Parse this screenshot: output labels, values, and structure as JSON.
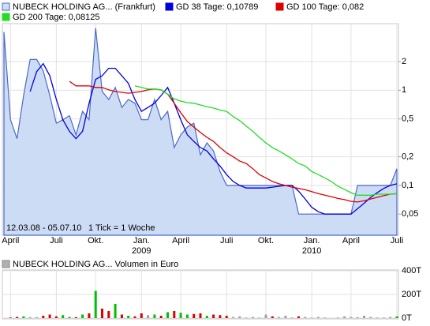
{
  "chart_data": [
    {
      "type": "line",
      "log": true,
      "grid": true,
      "ylim": [
        0.03,
        5
      ],
      "yticks": [
        {
          "value": 0.05,
          "label": "0,05"
        },
        {
          "value": 0.1,
          "label": "0,1"
        },
        {
          "value": 0.2,
          "label": "0,2"
        },
        {
          "value": 0.5,
          "label": "0,5"
        },
        1,
        2
      ],
      "annotations": [
        "12.03.08 - 05.07.10",
        "1 Tick = 1 Woche"
      ],
      "categories": [
        null,
        "April",
        null,
        null,
        null,
        null,
        null,
        null,
        "Juli",
        null,
        null,
        null,
        null,
        null,
        "Okt.",
        null,
        null,
        null,
        null,
        null,
        null,
        "Jan.",
        null,
        null,
        null,
        null,
        null,
        "April",
        null,
        null,
        null,
        null,
        null,
        null,
        "Juli",
        null,
        null,
        null,
        null,
        null,
        "Okt.",
        null,
        null,
        null,
        null,
        null,
        null,
        "Jan.",
        null,
        null,
        null,
        null,
        null,
        "April",
        null,
        null,
        null,
        null,
        null,
        null,
        "Juli"
      ],
      "category_years": [
        null,
        null,
        null,
        null,
        null,
        null,
        null,
        null,
        null,
        null,
        null,
        null,
        null,
        null,
        null,
        null,
        null,
        null,
        null,
        null,
        null,
        "2009",
        null,
        null,
        null,
        null,
        null,
        null,
        null,
        null,
        null,
        null,
        null,
        null,
        null,
        null,
        null,
        null,
        null,
        null,
        null,
        null,
        null,
        null,
        null,
        null,
        null,
        "2010",
        null,
        null,
        null,
        null,
        null,
        null,
        null,
        null,
        null,
        null,
        null,
        null,
        null
      ],
      "series": [
        {
          "name": "NUBECK HOLDING AG... (Frankfurt)",
          "color": "#4a68cc",
          "fill": "#cddcf5",
          "style": "area",
          "values": [
            4.1,
            0.49,
            0.31,
            0.88,
            2.1,
            2.1,
            1.6,
            0.88,
            0.45,
            0.49,
            0.54,
            0.34,
            0.6,
            0.49,
            4.5,
            0.97,
            0.8,
            1.07,
            0.66,
            0.8,
            0.73,
            0.49,
            0.49,
            0.8,
            0.49,
            0.6,
            0.25,
            0.34,
            0.41,
            0.45,
            0.21,
            0.28,
            0.23,
            0.14,
            0.1,
            0.1,
            0.1,
            0.1,
            0.1,
            0.1,
            0.1,
            0.1,
            0.1,
            0.1,
            0.1,
            0.05,
            0.05,
            0.05,
            0.05,
            0.05,
            0.05,
            0.05,
            0.05,
            0.05,
            0.1,
            0.1,
            0.1,
            0.1,
            0.1,
            0.1,
            0.15
          ]
        },
        {
          "name": "GD 38 Tage: 0,10789",
          "color": "#0000dd",
          "style": "line",
          "values": [
            null,
            null,
            null,
            null,
            0.97,
            1.57,
            1.9,
            1.42,
            0.8,
            0.49,
            0.37,
            0.31,
            0.37,
            0.73,
            1.3,
            1.42,
            1.7,
            1.7,
            1.42,
            1.18,
            0.8,
            0.6,
            0.66,
            0.73,
            0.88,
            1.07,
            0.73,
            0.49,
            0.34,
            0.29,
            0.25,
            0.23,
            0.19,
            0.16,
            0.13,
            0.11,
            0.1,
            0.094,
            0.094,
            0.094,
            0.094,
            0.096,
            0.098,
            0.1,
            0.1,
            0.087,
            0.072,
            0.059,
            0.053,
            0.05,
            0.05,
            0.05,
            0.05,
            0.05,
            0.057,
            0.065,
            0.075,
            0.084,
            0.093,
            0.1,
            0.104
          ]
        },
        {
          "name": "GD 100 Tage: 0,082",
          "color": "#dd0000",
          "style": "line",
          "values": [
            null,
            null,
            null,
            null,
            null,
            null,
            null,
            null,
            null,
            null,
            1.24,
            1.11,
            1.11,
            1.11,
            1.07,
            1.07,
            1.01,
            0.97,
            0.95,
            0.93,
            0.95,
            0.97,
            1.01,
            1.03,
            1.01,
            0.91,
            0.73,
            0.58,
            0.47,
            0.41,
            0.36,
            0.32,
            0.29,
            0.25,
            0.22,
            0.2,
            0.18,
            0.17,
            0.15,
            0.13,
            0.12,
            0.11,
            0.104,
            0.1,
            0.096,
            0.093,
            0.09,
            0.086,
            0.082,
            0.079,
            0.076,
            0.073,
            0.071,
            0.068,
            0.067,
            0.069,
            0.072,
            0.075,
            0.078,
            0.081,
            0.082
          ]
        },
        {
          "name": "GD 200 Tage: 0,08125",
          "color": "#22dd22",
          "style": "line",
          "values": [
            null,
            null,
            null,
            null,
            null,
            null,
            null,
            null,
            null,
            null,
            null,
            null,
            null,
            null,
            null,
            null,
            null,
            null,
            null,
            null,
            1.11,
            1.07,
            1.03,
            1.03,
            1.01,
            0.91,
            0.81,
            0.77,
            0.74,
            0.73,
            0.7,
            0.67,
            0.65,
            0.62,
            0.6,
            0.53,
            0.48,
            0.42,
            0.37,
            0.32,
            0.28,
            0.25,
            0.23,
            0.21,
            0.19,
            0.17,
            0.16,
            0.14,
            0.13,
            0.12,
            0.11,
            0.098,
            0.091,
            0.084,
            0.079,
            0.079,
            0.079,
            0.081,
            0.081,
            0.081,
            0.082
          ]
        }
      ]
    },
    {
      "type": "bar",
      "grid": true,
      "ylim": [
        0,
        400
      ],
      "yticks": [
        {
          "value": 0,
          "label": "0T"
        },
        {
          "value": 200,
          "label": "200T"
        },
        {
          "value": 400,
          "label": "400T"
        }
      ],
      "series": [
        {
          "name": "NUBECK HOLDING AG... Volumen in Euro",
          "color": "#b0b0b0",
          "values": [
            0,
            5,
            10,
            15,
            5,
            8,
            20,
            30,
            15,
            25,
            10,
            8,
            30,
            40,
            230,
            80,
            60,
            120,
            30,
            20,
            15,
            40,
            25,
            30,
            20,
            50,
            60,
            45,
            30,
            35,
            40,
            20,
            30,
            25,
            20,
            10,
            15,
            5,
            10,
            5,
            30,
            15,
            10,
            20,
            5,
            15,
            10,
            5,
            10,
            5,
            0,
            5,
            15,
            10,
            5,
            20,
            10,
            5,
            5,
            10,
            15
          ],
          "colors": [
            "#a0a0a0",
            "#dd0000",
            "#dd0000",
            "#00c000",
            "#00c000",
            "#a0a0a0",
            "#dd0000",
            "#dd0000",
            "#dd0000",
            "#00c000",
            "#00c000",
            "#dd0000",
            "#00c000",
            "#dd0000",
            "#00c000",
            "#dd0000",
            "#dd0000",
            "#00c000",
            "#dd0000",
            "#00c000",
            "#dd0000",
            "#dd0000",
            "#a0a0a0",
            "#00c000",
            "#dd0000",
            "#00c000",
            "#dd0000",
            "#00c000",
            "#00c000",
            "#dd0000",
            "#dd0000",
            "#00c000",
            "#dd0000",
            "#dd0000",
            "#dd0000",
            "#a0a0a0",
            "#a0a0a0",
            "#a0a0a0",
            "#a0a0a0",
            "#a0a0a0",
            "#a0a0a0",
            "#dd0000",
            "#a0a0a0",
            "#a0a0a0",
            "#a0a0a0",
            "#dd0000",
            "#a0a0a0",
            "#a0a0a0",
            "#a0a0a0",
            "#a0a0a0",
            "#a0a0a0",
            "#a0a0a0",
            "#a0a0a0",
            "#a0a0a0",
            "#00c000",
            "#a0a0a0",
            "#a0a0a0",
            "#a0a0a0",
            "#a0a0a0",
            "#a0a0a0",
            "#00c000"
          ]
        }
      ]
    }
  ]
}
